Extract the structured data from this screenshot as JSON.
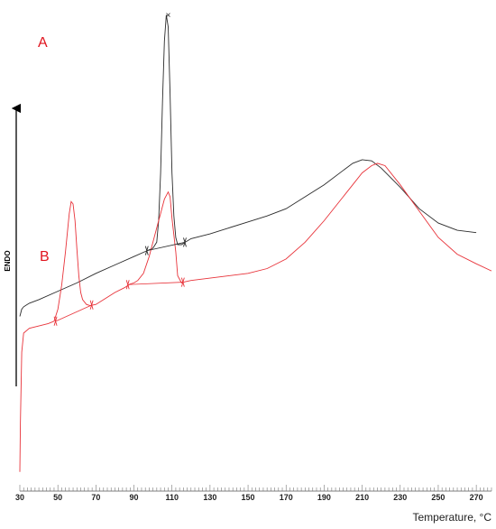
{
  "chart_data": {
    "type": "line",
    "xlabel": "Temperature, °C",
    "ylabel": "ENDO",
    "xlim": [
      30,
      278
    ],
    "ylim": [
      -62,
      135
    ],
    "x_ticks": [
      30,
      50,
      70,
      90,
      110,
      130,
      150,
      170,
      190,
      210,
      230,
      250,
      270
    ],
    "colors": {
      "A": "#2b2b2b",
      "B": "#e8333a",
      "tick_marks": "#e8333a"
    },
    "series": [
      {
        "name": "A",
        "x": [
          30,
          31,
          32,
          33,
          35,
          40,
          50,
          60,
          70,
          80,
          90,
          97,
          100,
          102,
          103,
          104,
          105,
          106,
          107,
          108,
          109,
          110,
          111,
          112,
          113,
          115,
          117,
          120,
          130,
          140,
          150,
          160,
          170,
          180,
          190,
          200,
          205,
          210,
          215,
          220,
          230,
          240,
          250,
          260,
          270
        ],
        "y": [
          5,
          8,
          9,
          9.5,
          10.5,
          12,
          15.5,
          19,
          23,
          26.5,
          30,
          32.5,
          33.5,
          36,
          45,
          65,
          95,
          120,
          131,
          126,
          98,
          65,
          47,
          38,
          35,
          35,
          36,
          37.5,
          39.5,
          42,
          44.5,
          47,
          50,
          55,
          60,
          66,
          69,
          70.5,
          70,
          67,
          59,
          50,
          44,
          41,
          40
        ]
      },
      {
        "name": "B",
        "x": [
          30,
          30.3,
          31,
          32,
          35,
          40,
          45,
          48,
          50,
          52,
          54,
          56,
          57,
          58,
          59,
          60,
          61,
          62,
          63,
          65,
          67,
          70,
          75,
          80,
          85,
          88,
          90,
          92,
          95,
          98,
          100,
          102,
          104,
          106,
          108,
          109,
          110,
          112,
          113,
          115,
          117,
          120,
          130,
          140,
          150,
          160,
          170,
          180,
          190,
          200,
          205,
          210,
          215,
          218,
          222,
          230,
          240,
          250,
          260,
          270,
          278
        ],
        "y": [
          -60,
          -40,
          -10,
          -2,
          0,
          1,
          2,
          3,
          8,
          18,
          32,
          48,
          53,
          52,
          45,
          33,
          22,
          15,
          12,
          10,
          9.5,
          10,
          12.5,
          15,
          17,
          18.5,
          19,
          20,
          23,
          30,
          36,
          42,
          48,
          54,
          57,
          55,
          46,
          32,
          22,
          19,
          19.5,
          20,
          21,
          22,
          23,
          25,
          29,
          36,
          45,
          55,
          60,
          65,
          68,
          69,
          68,
          60,
          49,
          38,
          31,
          27,
          24
        ]
      }
    ],
    "labels": {
      "A": "A",
      "B": "B"
    }
  }
}
